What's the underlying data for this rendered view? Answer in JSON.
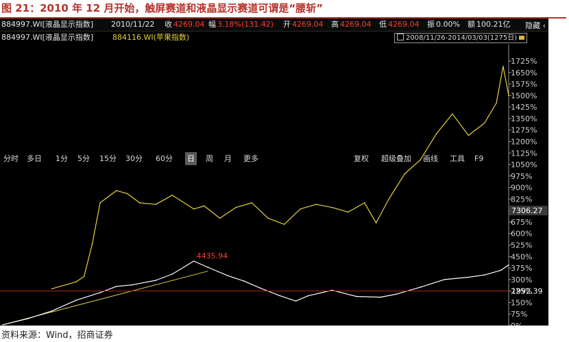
{
  "figure": {
    "title": "图 21：2010 年 12 月开始，触屏赛道和液晶显示赛道可谓是“腰斩”",
    "source": "资料来源：Wind，招商证券"
  },
  "info_bar": {
    "series_code": "884997.WI[液晶显示指数]",
    "date": "2010/11/22",
    "close_label": "收",
    "close_value": "4269.04",
    "change_label": "幅",
    "change_value": "3.18%(131.42)",
    "open_label": "开",
    "open_value": "4269.04",
    "high_label": "高",
    "high_value": "4269.04",
    "low_label": "低",
    "low_value": "4269.04",
    "amplitude_label": "振",
    "amplitude_value": "0.00%",
    "amount_label": "额",
    "amount_value": "100.21亿",
    "hide_label": "隐藏"
  },
  "legend": {
    "series1": "884997.WI[液晶显示指数]",
    "series2": "884116.WI(苹果指数)",
    "range": "2008/11/26-2014/03/03(1275日)"
  },
  "toolbar": {
    "periods": [
      "分时",
      "多日",
      "1分",
      "5分",
      "15分",
      "30分",
      "60分",
      "日",
      "周",
      "月",
      "更多"
    ],
    "active": "日",
    "tools": [
      "复权",
      "超级叠加",
      "画线",
      "工具",
      "F9"
    ]
  },
  "colors": {
    "background": "#000000",
    "series1": "#ffffff",
    "series2": "#e6d23a",
    "trendline": "#d9c84a",
    "annotation": "#ff3b30",
    "tag_red": "#b3261e",
    "tag_gray": "#3a3a3a"
  },
  "chart_data": {
    "type": "line",
    "x_range": [
      "2008/11/26",
      "2014/03/03"
    ],
    "ylim": [
      0,
      1725
    ],
    "y_unit": "%",
    "y_ticks": [
      0,
      75,
      150,
      225,
      300,
      375,
      450,
      525,
      600,
      675,
      750,
      825,
      900,
      975,
      1050,
      1125,
      1200,
      1275,
      1350,
      1425,
      1500,
      1575,
      1650,
      1725
    ],
    "y_tick_labels": [
      "0%",
      "75%",
      "150%",
      "225%",
      "300%",
      "375%",
      "450%",
      "525%",
      "600%",
      "675%",
      "750%",
      "825%",
      "900%",
      "975%",
      "1050%",
      "1125%",
      "1200%",
      "1275%",
      "1350%",
      "1425%",
      "1500%",
      "1575%",
      "1650%",
      "1725%"
    ],
    "grid": false,
    "series": [
      {
        "name": "884997.WI[液晶显示指数]",
        "x": [
          "2008/11/26",
          "2009/03/01",
          "2009/06/01",
          "2009/09/01",
          "2009/12/01",
          "2010/02/01",
          "2010/04/01",
          "2010/07/01",
          "2010/09/01",
          "2010/11/22",
          "2011/01/15",
          "2011/04/01",
          "2011/06/01",
          "2011/08/01",
          "2011/10/15",
          "2011/12/15",
          "2012/02/01",
          "2012/05/01",
          "2012/08/01",
          "2012/11/01",
          "2013/01/01",
          "2013/04/01",
          "2013/07/01",
          "2013/10/01",
          "2013/12/01",
          "2014/02/01",
          "2014/03/03"
        ],
        "values": [
          5,
          45,
          95,
          165,
          215,
          255,
          265,
          295,
          335,
          420,
          380,
          325,
          290,
          245,
          195,
          160,
          195,
          230,
          190,
          185,
          205,
          250,
          300,
          315,
          330,
          360,
          395
        ]
      },
      {
        "name": "884116.WI(苹果指数)",
        "x": [
          "2009/06/01",
          "2009/09/01",
          "2009/10/01",
          "2009/11/01",
          "2009/12/01",
          "2010/02/01",
          "2010/03/15",
          "2010/05/01",
          "2010/07/01",
          "2010/09/01",
          "2010/11/22",
          "2011/01/01",
          "2011/03/01",
          "2011/05/01",
          "2011/07/01",
          "2011/09/01",
          "2011/11/01",
          "2012/01/01",
          "2012/03/01",
          "2012/05/01",
          "2012/07/01",
          "2012/09/01",
          "2012/10/15",
          "2012/12/01",
          "2013/02/01",
          "2013/04/01",
          "2013/06/01",
          "2013/08/01",
          "2013/10/01",
          "2013/12/01",
          "2014/01/15",
          "2014/02/10",
          "2014/03/03"
        ],
        "values": [
          240,
          285,
          320,
          530,
          800,
          880,
          860,
          800,
          790,
          850,
          760,
          780,
          700,
          770,
          800,
          700,
          660,
          760,
          790,
          770,
          740,
          800,
          670,
          820,
          990,
          1080,
          1250,
          1380,
          1240,
          1320,
          1450,
          1690,
          1500
        ]
      }
    ],
    "annotations": [
      {
        "text": "4435.94",
        "x": "2010/11/22",
        "series": "884997.WI[液晶显示指数]"
      }
    ],
    "trendline": {
      "from": {
        "x": "2008/11/26",
        "y": 5
      },
      "to": {
        "x": "2011/01/15",
        "y": 355
      }
    },
    "last_value_tags": [
      "7306.27",
      "1992.39"
    ]
  }
}
